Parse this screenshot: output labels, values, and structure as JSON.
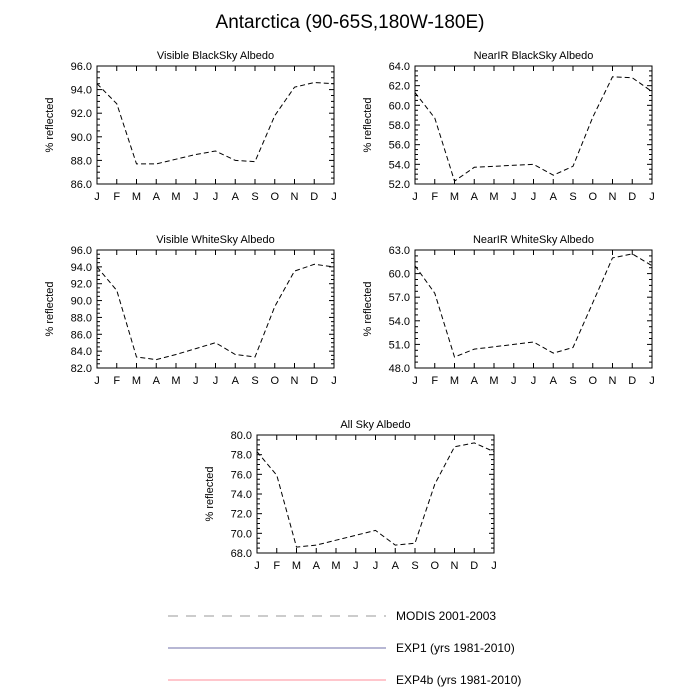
{
  "figure": {
    "title": "Antarctica (90-65S,180W-180E)"
  },
  "legend": [
    {
      "label": "MODIS 2001-2003",
      "color": "#999999",
      "dash": "dashed"
    },
    {
      "label": "EXP1 (yrs 1981-2010)",
      "color": "#6f6fa8",
      "dash": "solid"
    },
    {
      "label": "EXP4b (yrs 1981-2010)",
      "color": "#ff8c9a",
      "dash": "solid"
    }
  ],
  "chart_data": [
    {
      "type": "line",
      "title": "Visible BlackSky Albedo",
      "ylabel": "% reflected",
      "xlabel": "",
      "categories": [
        "J",
        "F",
        "M",
        "A",
        "M",
        "J",
        "J",
        "A",
        "S",
        "O",
        "N",
        "D",
        "J"
      ],
      "ylim": [
        86.0,
        96.0
      ],
      "yticks": [
        "86.0",
        "88.0",
        "90.0",
        "92.0",
        "94.0",
        "96.0"
      ],
      "series": [
        {
          "name": "MODIS 2001-2003",
          "values": [
            94.5,
            92.8,
            87.7,
            87.7,
            88.1,
            88.5,
            88.8,
            88.0,
            87.9,
            91.8,
            94.2,
            94.6,
            94.5
          ]
        }
      ]
    },
    {
      "type": "line",
      "title": "NearIR BlackSky Albedo",
      "ylabel": "% reflected",
      "xlabel": "",
      "categories": [
        "J",
        "F",
        "M",
        "A",
        "M",
        "J",
        "J",
        "A",
        "S",
        "O",
        "N",
        "D",
        "J"
      ],
      "ylim": [
        52.0,
        64.0
      ],
      "yticks": [
        "52.0",
        "54.0",
        "56.0",
        "58.0",
        "60.0",
        "62.0",
        "64.0"
      ],
      "series": [
        {
          "name": "MODIS 2001-2003",
          "values": [
            61.3,
            58.7,
            52.3,
            53.7,
            53.8,
            53.9,
            54.0,
            52.9,
            53.8,
            58.8,
            62.9,
            62.8,
            61.4
          ]
        }
      ]
    },
    {
      "type": "line",
      "title": "Visible WhiteSky Albedo",
      "ylabel": "% reflected",
      "xlabel": "",
      "categories": [
        "J",
        "F",
        "M",
        "A",
        "M",
        "J",
        "J",
        "A",
        "S",
        "O",
        "N",
        "D",
        "J"
      ],
      "ylim": [
        82.0,
        96.0
      ],
      "yticks": [
        "82.0",
        "84.0",
        "86.0",
        "88.0",
        "90.0",
        "92.0",
        "94.0",
        "96.0"
      ],
      "series": [
        {
          "name": "MODIS 2001-2003",
          "values": [
            94.0,
            91.2,
            83.3,
            83.0,
            83.6,
            84.3,
            85.0,
            83.6,
            83.3,
            89.3,
            93.5,
            94.3,
            94.0
          ]
        }
      ]
    },
    {
      "type": "line",
      "title": "NearIR WhiteSky Albedo",
      "ylabel": "% reflected",
      "xlabel": "",
      "categories": [
        "J",
        "F",
        "M",
        "A",
        "M",
        "J",
        "J",
        "A",
        "S",
        "O",
        "N",
        "D",
        "J"
      ],
      "ylim": [
        48.0,
        63.0
      ],
      "yticks": [
        "48.0",
        "51.0",
        "54.0",
        "57.0",
        "60.0",
        "63.0"
      ],
      "series": [
        {
          "name": "MODIS 2001-2003",
          "values": [
            61.0,
            57.5,
            49.4,
            50.4,
            50.7,
            51.0,
            51.3,
            49.9,
            50.6,
            56.3,
            62.0,
            62.5,
            61.0
          ]
        }
      ]
    },
    {
      "type": "line",
      "title": "All Sky Albedo",
      "ylabel": "% reflected",
      "xlabel": "",
      "categories": [
        "J",
        "F",
        "M",
        "A",
        "M",
        "J",
        "J",
        "A",
        "S",
        "O",
        "N",
        "D",
        "J"
      ],
      "ylim": [
        68.0,
        80.0
      ],
      "yticks": [
        "68.0",
        "70.0",
        "72.0",
        "74.0",
        "76.0",
        "78.0",
        "80.0"
      ],
      "series": [
        {
          "name": "MODIS 2001-2003",
          "values": [
            78.3,
            75.9,
            68.6,
            68.8,
            69.3,
            69.8,
            70.3,
            68.8,
            69.0,
            75.0,
            78.8,
            79.2,
            78.3
          ]
        }
      ]
    }
  ]
}
